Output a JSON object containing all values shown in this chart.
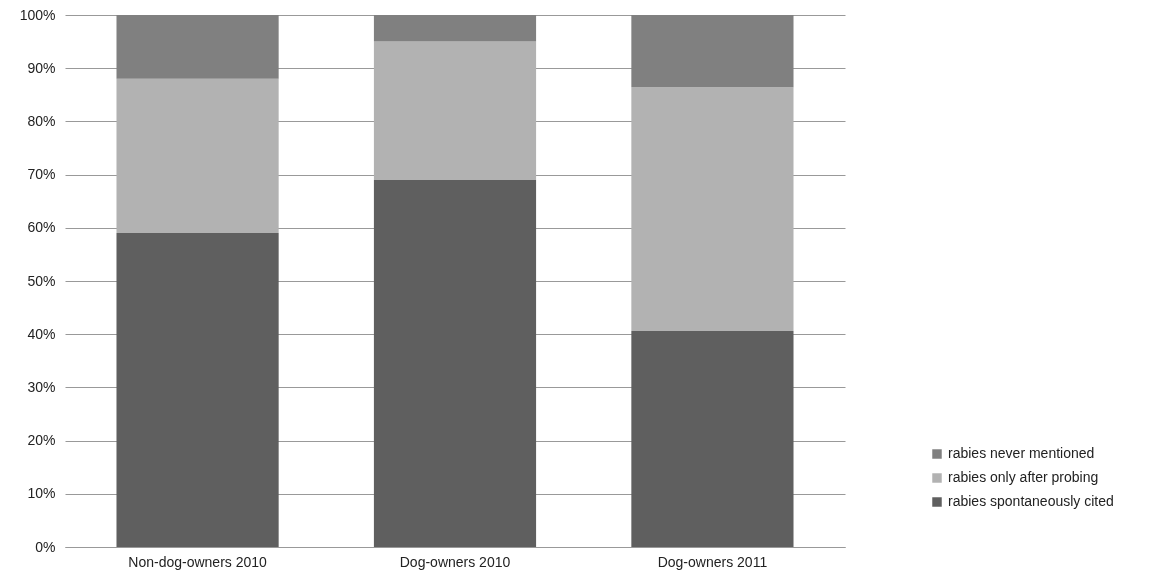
{
  "chart_data": {
    "type": "bar",
    "stacked": true,
    "categories": [
      "Non-dog-owners 2010",
      "Dog-owners 2010",
      "Dog-owners 2011"
    ],
    "series": [
      {
        "name": "rabies spontaneously cited",
        "color": "#5f5f5f",
        "values": [
          59,
          69,
          40.6
        ]
      },
      {
        "name": "rabies only after probing",
        "color": "#b2b2b2",
        "values": [
          29,
          26,
          45.8
        ]
      },
      {
        "name": "rabies never mentioned",
        "color": "#808080",
        "values": [
          12,
          5,
          13.6
        ]
      }
    ],
    "ylim": [
      0,
      100
    ],
    "yticks": [
      {
        "value": 0,
        "label": "0%"
      },
      {
        "value": 10,
        "label": "10%"
      },
      {
        "value": 20,
        "label": "20%"
      },
      {
        "value": 30,
        "label": "30%"
      },
      {
        "value": 40,
        "label": "40%"
      },
      {
        "value": 50,
        "label": "50%"
      },
      {
        "value": 60,
        "label": "60%"
      },
      {
        "value": 70,
        "label": "70%"
      },
      {
        "value": 80,
        "label": "80%"
      },
      {
        "value": 90,
        "label": "90%"
      },
      {
        "value": 100,
        "label": "100%"
      }
    ],
    "grid": "y",
    "legend": "bottom right"
  }
}
